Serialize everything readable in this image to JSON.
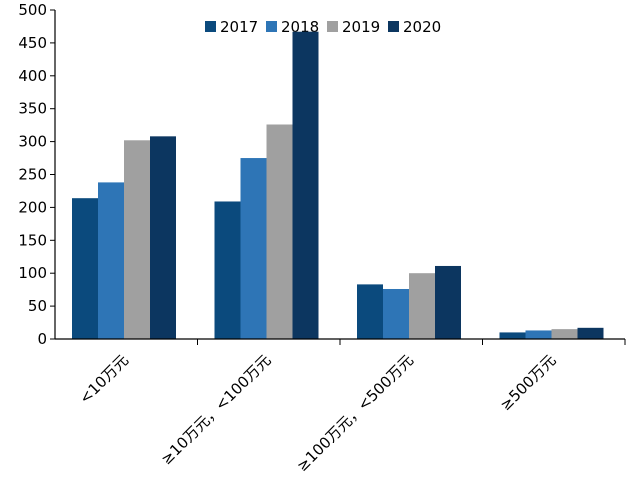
{
  "chart_data": {
    "type": "bar",
    "title": "",
    "xlabel": "",
    "ylabel": "",
    "ylim": [
      0,
      500
    ],
    "yticks": [
      0,
      50,
      100,
      150,
      200,
      250,
      300,
      350,
      400,
      450,
      500
    ],
    "grid": false,
    "legend_position": "top",
    "categories": [
      "<10万元",
      "≥10万元，<100万元",
      "≥100万元，<500万元",
      "≥500万元"
    ],
    "series": [
      {
        "name": "2017",
        "color": "#0b4a7d",
        "values": [
          214,
          209,
          83,
          10
        ]
      },
      {
        "name": "2018",
        "color": "#2e75b6",
        "values": [
          238,
          275,
          76,
          13
        ]
      },
      {
        "name": "2019",
        "color": "#a0a0a0",
        "values": [
          302,
          326,
          100,
          15
        ]
      },
      {
        "name": "2020",
        "color": "#0c3660",
        "values": [
          308,
          467,
          111,
          17
        ]
      }
    ]
  }
}
